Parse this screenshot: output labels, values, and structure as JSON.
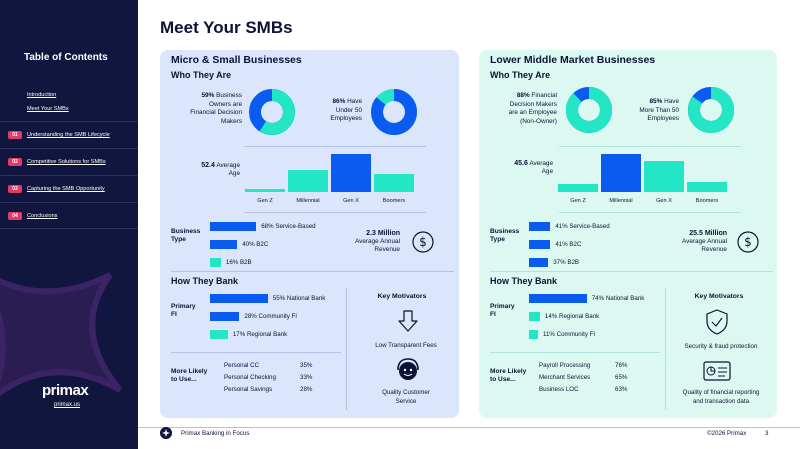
{
  "page_title": "Meet Your SMBs",
  "sidebar": {
    "title": "Table of Contents",
    "links": [
      "Introduction",
      "Meet Your SMBs"
    ],
    "items": [
      {
        "num": "01",
        "label": "Understanding the SMB Lifecycle"
      },
      {
        "num": "02",
        "label": "Competitive Solutions for SMBs"
      },
      {
        "num": "03",
        "label": "Capturing the SMB Opportunity"
      },
      {
        "num": "04",
        "label": "Conclusions"
      }
    ],
    "logo": "primax",
    "url": "primax.us"
  },
  "colors": {
    "sidebar": "#10163d",
    "blue": "#0a5cf0",
    "teal": "#22e6c4",
    "accent": "#e23b6b"
  },
  "panels": {
    "left": {
      "title": "Micro & Small Businesses",
      "who": "Who They Are",
      "stat1": {
        "pct": "59%",
        "text1": "Business",
        "text2": "Owners are",
        "text3": "Financial Decision",
        "text4": "Makers",
        "value": 59
      },
      "stat2": {
        "pct": "86%",
        "text1": "Have",
        "text2": "Under 50",
        "text3": "Employees",
        "value": 86
      },
      "age": {
        "value": "52.4",
        "text1": "Average",
        "text2": "Age"
      },
      "gens": [
        {
          "label": "Gen Z",
          "value": 3
        },
        {
          "label": "Millennial",
          "value": 22
        },
        {
          "label": "Gen X",
          "value": 38
        },
        {
          "label": "Boomers",
          "value": 18
        }
      ],
      "business_type_label1": "Business",
      "business_type_label2": "Type",
      "business_type": [
        {
          "label": "68% Service-Based",
          "value": 68,
          "color": "blue"
        },
        {
          "label": "40% B2C",
          "value": 40,
          "color": "blue"
        },
        {
          "label": "16% B2B",
          "value": 16,
          "color": "teal"
        }
      ],
      "revenue": {
        "value": "2.3 Million",
        "text1": "Average Annual",
        "text2": "Revenue"
      },
      "bank": "How They Bank",
      "primary_label1": "Primary",
      "primary_label2": "FI",
      "primary": [
        {
          "label": "55% National Bank",
          "value": 55,
          "color": "blue"
        },
        {
          "label": "28% Community FI",
          "value": 28,
          "color": "blue"
        },
        {
          "label": "17% Regional Bank",
          "value": 17,
          "color": "teal"
        }
      ],
      "motivators_title": "Key Motivators",
      "motivator1": "Low Transparent Fees",
      "motivator2a": "Quality Customer",
      "motivator2b": "Service",
      "likely_label1": "More Likely",
      "likely_label2": "to Use...",
      "likely": [
        {
          "label": "Personal CC",
          "pct": "35%"
        },
        {
          "label": "Personal Checking",
          "pct": "33%"
        },
        {
          "label": "Personal Savings",
          "pct": "28%"
        }
      ]
    },
    "right": {
      "title": "Lower Middle Market Businesses",
      "who": "Who They Are",
      "stat1": {
        "pct": "88%",
        "text1": "Financial",
        "text2": "Decision Makers",
        "text3": "are an Employee",
        "text4": "(Non-Owner)",
        "value": 88
      },
      "stat2": {
        "pct": "85%",
        "text1": "Have",
        "text2": "More Than 50",
        "text3": "Employees",
        "value": 85
      },
      "age": {
        "value": "45.6",
        "text1": "Average",
        "text2": "Age"
      },
      "gens": [
        {
          "label": "Gen Z",
          "value": 8
        },
        {
          "label": "Millennial",
          "value": 38
        },
        {
          "label": "Gen X",
          "value": 31
        },
        {
          "label": "Boomers",
          "value": 10
        }
      ],
      "business_type_label1": "Business",
      "business_type_label2": "Type",
      "business_type": [
        {
          "label": "41% Service-Based",
          "value": 41,
          "color": "blue"
        },
        {
          "label": "41% B2C",
          "value": 41,
          "color": "blue"
        },
        {
          "label": "37% B2B",
          "value": 37,
          "color": "blue"
        }
      ],
      "revenue": {
        "value": "25.5 Million",
        "text1": "Average Annual",
        "text2": "Revenue"
      },
      "bank": "How They Bank",
      "primary_label1": "Primary",
      "primary_label2": "FI",
      "primary": [
        {
          "label": "74% National Bank",
          "value": 74,
          "color": "blue"
        },
        {
          "label": "14% Regional Bank",
          "value": 14,
          "color": "teal"
        },
        {
          "label": "11% Community FI",
          "value": 11,
          "color": "teal"
        }
      ],
      "motivators_title": "Key Motivators",
      "motivator1": "Security & fraud protection",
      "motivator2a": "Quality of financial reporting",
      "motivator2b": "and transaction data",
      "likely_label1": "More Likely",
      "likely_label2": "to Use...",
      "likely": [
        {
          "label": "Payroll Processing",
          "pct": "76%"
        },
        {
          "label": "Merchant Services",
          "pct": "65%"
        },
        {
          "label": "Business LOC",
          "pct": "63%"
        }
      ]
    }
  },
  "footer": {
    "text": "Primax Banking in Focus",
    "copyright": "©2026 Primax",
    "page": "3"
  }
}
